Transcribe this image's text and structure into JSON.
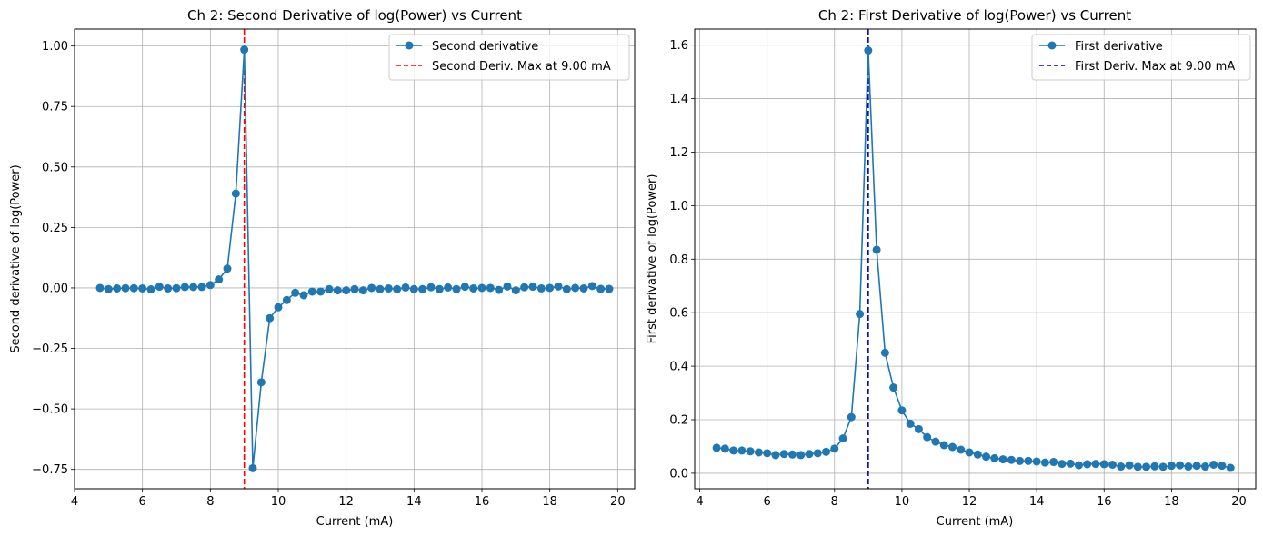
{
  "chart_data": [
    {
      "type": "line",
      "title": "Ch 2: Second Derivative of log(Power) vs Current",
      "xlabel": "Current (mA)",
      "ylabel": "Second derivative of log(Power)",
      "xlim": [
        4.0,
        20.5
      ],
      "ylim": [
        -0.83,
        1.07
      ],
      "xticks": [
        4,
        6,
        8,
        10,
        12,
        14,
        16,
        18,
        20
      ],
      "xtick_labels": [
        "4",
        "6",
        "8",
        "10",
        "12",
        "14",
        "16",
        "18",
        "20"
      ],
      "yticks": [
        -0.75,
        -0.5,
        -0.25,
        0.0,
        0.25,
        0.5,
        0.75,
        1.0
      ],
      "ytick_labels": [
        "−0.75",
        "−0.50",
        "−0.25",
        "0.00",
        "0.25",
        "0.50",
        "0.75",
        "1.00"
      ],
      "grid": true,
      "legend_position": "top-right",
      "series": [
        {
          "name": "Second derivative",
          "color": "#1f77b4",
          "marker": "circle",
          "x": [
            4.75,
            5.0,
            5.25,
            5.5,
            5.75,
            6.0,
            6.25,
            6.5,
            6.75,
            7.0,
            7.25,
            7.5,
            7.75,
            8.0,
            8.25,
            8.5,
            8.75,
            9.0,
            9.25,
            9.5,
            9.75,
            10.0,
            10.25,
            10.5,
            10.75,
            11.0,
            11.25,
            11.5,
            11.75,
            12.0,
            12.25,
            12.5,
            12.75,
            13.0,
            13.25,
            13.5,
            13.75,
            14.0,
            14.25,
            14.5,
            14.75,
            15.0,
            15.25,
            15.5,
            15.75,
            16.0,
            16.25,
            16.5,
            16.75,
            17.0,
            17.25,
            17.5,
            17.75,
            18.0,
            18.25,
            18.5,
            18.75,
            19.0,
            19.25,
            19.5,
            19.75
          ],
          "y": [
            0.0,
            -0.005,
            -0.002,
            -0.001,
            -0.001,
            -0.002,
            -0.006,
            0.005,
            -0.002,
            -0.001,
            0.004,
            0.004,
            0.004,
            0.012,
            0.035,
            0.08,
            0.39,
            0.985,
            -0.745,
            -0.39,
            -0.125,
            -0.08,
            -0.05,
            -0.02,
            -0.03,
            -0.015,
            -0.015,
            -0.005,
            -0.01,
            -0.01,
            -0.005,
            -0.01,
            0.0,
            -0.005,
            -0.002,
            -0.005,
            0.002,
            -0.005,
            -0.005,
            0.003,
            -0.005,
            0.002,
            -0.005,
            0.005,
            -0.002,
            0.0,
            0.0,
            -0.008,
            0.006,
            -0.01,
            0.003,
            0.005,
            -0.002,
            0.0,
            0.006,
            -0.005,
            0.0,
            -0.002,
            0.008,
            -0.004,
            -0.004
          ]
        }
      ],
      "vline": {
        "name": "Second Deriv. Max at 9.00 mA",
        "x": 9.0,
        "color": "#ff0000",
        "style": "dashed"
      }
    },
    {
      "type": "line",
      "title": "Ch 2: First Derivative of log(Power) vs Current",
      "xlabel": "Current (mA)",
      "ylabel": "First derivative of log(Power)",
      "xlim": [
        3.85,
        20.5
      ],
      "ylim": [
        -0.058,
        1.66
      ],
      "xticks": [
        4,
        6,
        8,
        10,
        12,
        14,
        16,
        18,
        20
      ],
      "xtick_labels": [
        "4",
        "6",
        "8",
        "10",
        "12",
        "14",
        "16",
        "18",
        "20"
      ],
      "yticks": [
        0.0,
        0.2,
        0.4,
        0.6,
        0.8,
        1.0,
        1.2,
        1.4,
        1.6
      ],
      "ytick_labels": [
        "0.0",
        "0.2",
        "0.4",
        "0.6",
        "0.8",
        "1.0",
        "1.2",
        "1.4",
        "1.6"
      ],
      "grid": true,
      "legend_position": "top-right",
      "series": [
        {
          "name": "First derivative",
          "color": "#1f77b4",
          "marker": "circle",
          "x": [
            4.5,
            4.75,
            5.0,
            5.25,
            5.5,
            5.75,
            6.0,
            6.25,
            6.5,
            6.75,
            7.0,
            7.25,
            7.5,
            7.75,
            8.0,
            8.25,
            8.5,
            8.75,
            9.0,
            9.25,
            9.5,
            9.75,
            10.0,
            10.25,
            10.5,
            10.75,
            11.0,
            11.25,
            11.5,
            11.75,
            12.0,
            12.25,
            12.5,
            12.75,
            13.0,
            13.25,
            13.5,
            13.75,
            14.0,
            14.25,
            14.5,
            14.75,
            15.0,
            15.25,
            15.5,
            15.75,
            16.0,
            16.25,
            16.5,
            16.75,
            17.0,
            17.25,
            17.5,
            17.75,
            18.0,
            18.25,
            18.5,
            18.75,
            19.0,
            19.25,
            19.5,
            19.75
          ],
          "y": [
            0.095,
            0.092,
            0.085,
            0.085,
            0.082,
            0.078,
            0.075,
            0.068,
            0.072,
            0.07,
            0.068,
            0.072,
            0.075,
            0.08,
            0.092,
            0.13,
            0.21,
            0.595,
            1.58,
            0.835,
            0.45,
            0.32,
            0.235,
            0.185,
            0.165,
            0.135,
            0.118,
            0.105,
            0.098,
            0.088,
            0.078,
            0.07,
            0.062,
            0.056,
            0.052,
            0.05,
            0.046,
            0.046,
            0.044,
            0.04,
            0.042,
            0.035,
            0.036,
            0.03,
            0.034,
            0.035,
            0.034,
            0.032,
            0.025,
            0.03,
            0.024,
            0.024,
            0.026,
            0.024,
            0.028,
            0.03,
            0.025,
            0.028,
            0.025,
            0.032,
            0.028,
            0.02
          ]
        }
      ],
      "vline": {
        "name": "First Deriv. Max at 9.00 mA",
        "x": 9.0,
        "color": "#0000cc",
        "style": "dashed"
      }
    }
  ]
}
